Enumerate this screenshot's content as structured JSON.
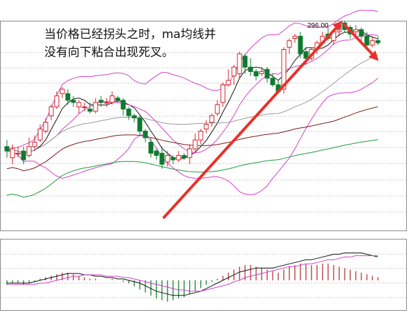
{
  "annotation": "当价格已经拐头之时，ma均线并没有向下粘合出现死叉。",
  "peak_label": "296.00",
  "colors": {
    "up": "#d0202a",
    "down": "#0e7a2e",
    "arrow": "#e8312c",
    "ma_black": "#111111",
    "ma_pink": "#d23fc8",
    "ma_gray": "#9a9a9a",
    "ma_darkred": "#7a1a1a",
    "ma_green": "#1f9a3a",
    "grid": "#c8c8c8",
    "macd_pos": "#b5343a",
    "macd_neg": "#148030"
  },
  "chart_data": {
    "type": "candlestick",
    "title": "",
    "xlabel": "",
    "ylabel": "",
    "ylim": [
      210,
      305
    ],
    "grid": true,
    "candles": [
      [
        248,
        246,
        251,
        243
      ],
      [
        243,
        247,
        249,
        240
      ],
      [
        245,
        245,
        248,
        243
      ],
      [
        246,
        242,
        248,
        240
      ],
      [
        244,
        248,
        252,
        243
      ],
      [
        248,
        250,
        253,
        246
      ],
      [
        251,
        256,
        258,
        250
      ],
      [
        255,
        259,
        261,
        254
      ],
      [
        262,
        266,
        267,
        260
      ],
      [
        266,
        271,
        273,
        265
      ],
      [
        272,
        274,
        275,
        270
      ],
      [
        272,
        269,
        274,
        267
      ],
      [
        269,
        268,
        271,
        266
      ],
      [
        266,
        268,
        269,
        263
      ],
      [
        266,
        266,
        268,
        264
      ],
      [
        265,
        264,
        268,
        263
      ],
      [
        264,
        268,
        270,
        263
      ],
      [
        269,
        268,
        271,
        266
      ],
      [
        268,
        268,
        270,
        266
      ],
      [
        268,
        271,
        273,
        267
      ],
      [
        270,
        269,
        271,
        268
      ],
      [
        269,
        265,
        270,
        262
      ],
      [
        265,
        262,
        266,
        260
      ],
      [
        262,
        261,
        263,
        259
      ],
      [
        261,
        255,
        262,
        253
      ],
      [
        255,
        252,
        256,
        250
      ],
      [
        250,
        245,
        252,
        243
      ],
      [
        246,
        244,
        247,
        242
      ],
      [
        245,
        240,
        248,
        238
      ],
      [
        241,
        244,
        246,
        239
      ],
      [
        243,
        242,
        244,
        240
      ],
      [
        242,
        244,
        246,
        241
      ],
      [
        244,
        243,
        245,
        242
      ],
      [
        243,
        247,
        249,
        240
      ],
      [
        247,
        251,
        254,
        245
      ],
      [
        251,
        255,
        256,
        249
      ],
      [
        256,
        258,
        260,
        254
      ],
      [
        259,
        262,
        263,
        257
      ],
      [
        263,
        267,
        269,
        262
      ],
      [
        268,
        276,
        277,
        266
      ],
      [
        276,
        278,
        283,
        275
      ],
      [
        280,
        284,
        285,
        276
      ],
      [
        281,
        290,
        291,
        279
      ],
      [
        289,
        284,
        290,
        281
      ],
      [
        284,
        282,
        288,
        280
      ],
      [
        282,
        280,
        283,
        278
      ],
      [
        281,
        282,
        284,
        280
      ],
      [
        283,
        279,
        284,
        277
      ],
      [
        279,
        276,
        281,
        275
      ],
      [
        276,
        273,
        278,
        272
      ],
      [
        274,
        292,
        293,
        272
      ],
      [
        293,
        296,
        297,
        290
      ],
      [
        297,
        298,
        299,
        295
      ],
      [
        298,
        290,
        300,
        288
      ],
      [
        291,
        288,
        293,
        285
      ],
      [
        288,
        292,
        293,
        287
      ],
      [
        292,
        295,
        296,
        290
      ],
      [
        295,
        298,
        300,
        294
      ],
      [
        299,
        297,
        302,
        296
      ],
      [
        296,
        300,
        301,
        294
      ],
      [
        300,
        303,
        304,
        298
      ],
      [
        304,
        301,
        305,
        300
      ],
      [
        302,
        299,
        303,
        297
      ],
      [
        300,
        301,
        303,
        298
      ],
      [
        301,
        298,
        302,
        296
      ],
      [
        298,
        294,
        300,
        292
      ],
      [
        294,
        296,
        298,
        293
      ],
      [
        296,
        295,
        298,
        294
      ]
    ],
    "macd": {
      "hist": [
        -3,
        -2,
        -2,
        -3,
        -2,
        -1,
        1,
        2,
        3,
        4,
        5,
        5,
        4,
        3,
        2,
        1,
        1,
        0,
        0,
        1,
        0,
        -1,
        -2,
        -4,
        -6,
        -8,
        -10,
        -12,
        -13,
        -14,
        -13,
        -12,
        -11,
        -9,
        -7,
        -5,
        -3,
        -1,
        1,
        3,
        5,
        7,
        9,
        10,
        10,
        9,
        8,
        7,
        6,
        5,
        7,
        9,
        10,
        11,
        11,
        10,
        10,
        11,
        11,
        10,
        9,
        8,
        7,
        6,
        5,
        4,
        3,
        2
      ],
      "dif": [
        -2,
        -2,
        -2,
        -2,
        -2,
        -1,
        0,
        1,
        2,
        3,
        4,
        5,
        5,
        5,
        4,
        4,
        3,
        3,
        2,
        2,
        1,
        1,
        0,
        -1,
        -2,
        -4,
        -6,
        -8,
        -9,
        -10,
        -11,
        -11,
        -11,
        -10,
        -9,
        -8,
        -6,
        -4,
        -2,
        0,
        2,
        4,
        6,
        7,
        8,
        9,
        9,
        9,
        9,
        10,
        11,
        12,
        13,
        14,
        15,
        15,
        16,
        17,
        18,
        19,
        19,
        20,
        20,
        20,
        20,
        19,
        18,
        17
      ],
      "dea": [
        -3,
        -3,
        -3,
        -3,
        -3,
        -3,
        -2,
        -2,
        -1,
        0,
        1,
        2,
        3,
        3,
        4,
        4,
        4,
        4,
        3,
        3,
        3,
        2,
        2,
        1,
        0,
        -1,
        -2,
        -3,
        -4,
        -5,
        -6,
        -7,
        -7,
        -8,
        -8,
        -8,
        -7,
        -6,
        -5,
        -4,
        -3,
        -1,
        0,
        2,
        3,
        4,
        5,
        6,
        7,
        8,
        9,
        10,
        10,
        11,
        12,
        12,
        13,
        14,
        15,
        15,
        16,
        17,
        17,
        18,
        18,
        18,
        18,
        18
      ]
    }
  }
}
